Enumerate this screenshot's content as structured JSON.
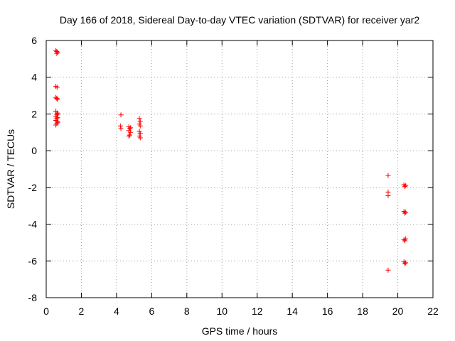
{
  "chart_data": {
    "type": "scatter",
    "title": "Day 166 of 2018, Sidereal Day-to-day VTEC variation (SDTVAR) for receiver yar2",
    "xlabel": "GPS time / hours",
    "ylabel": "SDTVAR / TECUs",
    "xlim": [
      0,
      22
    ],
    "ylim": [
      -8,
      6
    ],
    "xticks": [
      0,
      2,
      4,
      6,
      8,
      10,
      12,
      14,
      16,
      18,
      20,
      22
    ],
    "yticks": [
      -8,
      -6,
      -4,
      -2,
      0,
      2,
      4,
      6
    ],
    "grid": true,
    "marker": "+",
    "colors": {
      "points": "#ff0000",
      "axes": "#000000",
      "grid": "#a0a0a0"
    },
    "series": [
      {
        "name": "SDTVAR",
        "points": [
          [
            0.55,
            5.45
          ],
          [
            0.6,
            5.4
          ],
          [
            0.65,
            5.35
          ],
          [
            0.6,
            5.3
          ],
          [
            0.55,
            3.5
          ],
          [
            0.62,
            3.45
          ],
          [
            0.55,
            2.9
          ],
          [
            0.6,
            2.85
          ],
          [
            0.65,
            2.8
          ],
          [
            0.55,
            2.15
          ],
          [
            0.62,
            2.05
          ],
          [
            0.67,
            2.0
          ],
          [
            0.6,
            1.95
          ],
          [
            0.55,
            1.85
          ],
          [
            0.65,
            1.8
          ],
          [
            0.6,
            1.75
          ],
          [
            0.55,
            1.65
          ],
          [
            0.62,
            1.6
          ],
          [
            0.67,
            1.55
          ],
          [
            0.6,
            1.5
          ],
          [
            0.55,
            1.4
          ],
          [
            4.25,
            1.95
          ],
          [
            4.22,
            1.35
          ],
          [
            4.25,
            1.2
          ],
          [
            4.7,
            1.3
          ],
          [
            4.8,
            1.25
          ],
          [
            4.75,
            1.2
          ],
          [
            4.7,
            1.1
          ],
          [
            4.8,
            1.0
          ],
          [
            4.75,
            0.85
          ],
          [
            4.7,
            0.8
          ],
          [
            5.3,
            1.75
          ],
          [
            5.35,
            1.6
          ],
          [
            5.3,
            1.45
          ],
          [
            5.35,
            1.35
          ],
          [
            5.3,
            1.05
          ],
          [
            5.35,
            0.95
          ],
          [
            5.3,
            0.8
          ],
          [
            5.35,
            0.7
          ],
          [
            19.45,
            -1.35
          ],
          [
            19.45,
            -2.25
          ],
          [
            19.45,
            -2.45
          ],
          [
            19.45,
            -6.5
          ],
          [
            20.35,
            -1.85
          ],
          [
            20.45,
            -1.9
          ],
          [
            20.4,
            -1.95
          ],
          [
            20.35,
            -3.3
          ],
          [
            20.45,
            -3.35
          ],
          [
            20.4,
            -3.4
          ],
          [
            20.35,
            -4.85
          ],
          [
            20.45,
            -4.8
          ],
          [
            20.4,
            -4.9
          ],
          [
            20.35,
            -6.05
          ],
          [
            20.45,
            -6.1
          ],
          [
            20.4,
            -6.15
          ]
        ]
      }
    ]
  }
}
